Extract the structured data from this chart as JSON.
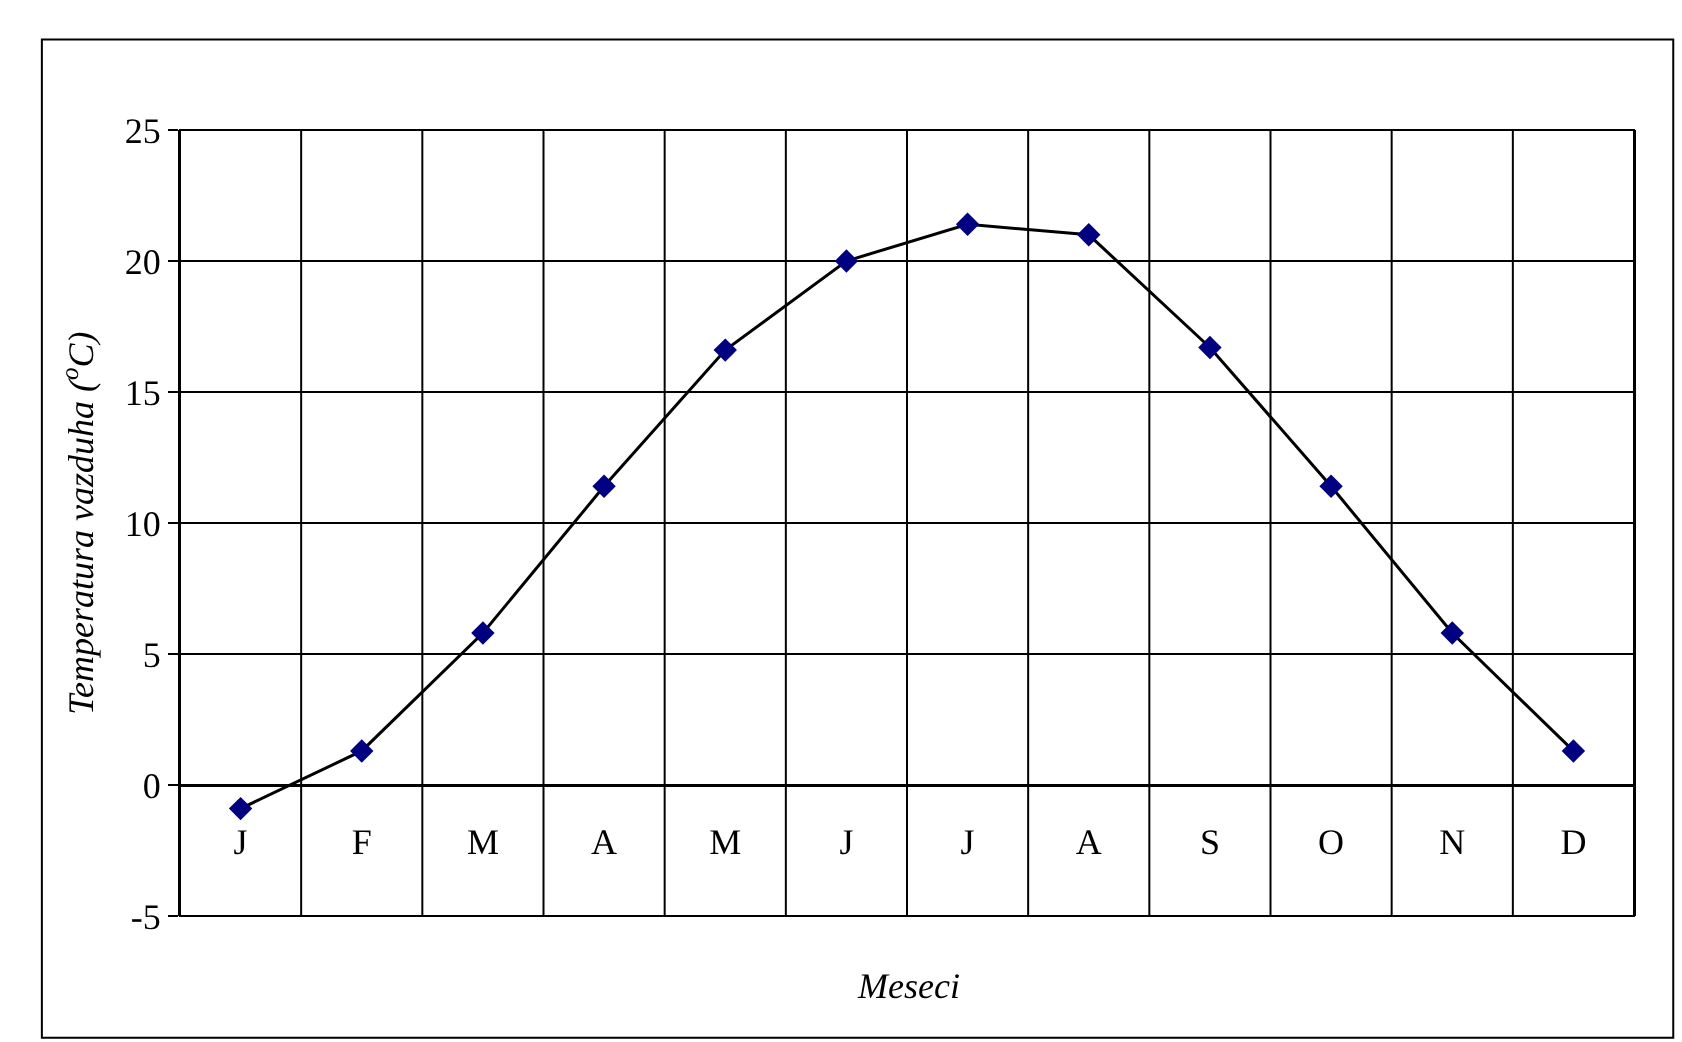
{
  "chart_data": {
    "type": "line",
    "xlabel": "Meseci",
    "ylabel": "Temperatura vazduha ($^{o}$C)",
    "categories": [
      "J",
      "F",
      "M",
      "A",
      "M",
      "J",
      "J",
      "A",
      "S",
      "O",
      "N",
      "D"
    ],
    "series": [
      {
        "color": "#000080",
        "values": [
          -0.9,
          1.3,
          5.8,
          11.4,
          16.6,
          20.0,
          21.4,
          21.0,
          16.7,
          11.4,
          5.8,
          1.3
        ]
      }
    ],
    "ylim": [
      -5,
      25
    ],
    "yticks": [
      -5,
      0,
      5,
      10,
      15,
      20,
      25
    ],
    "grid": true,
    "marker": "diamond",
    "line_style": "solid"
  }
}
